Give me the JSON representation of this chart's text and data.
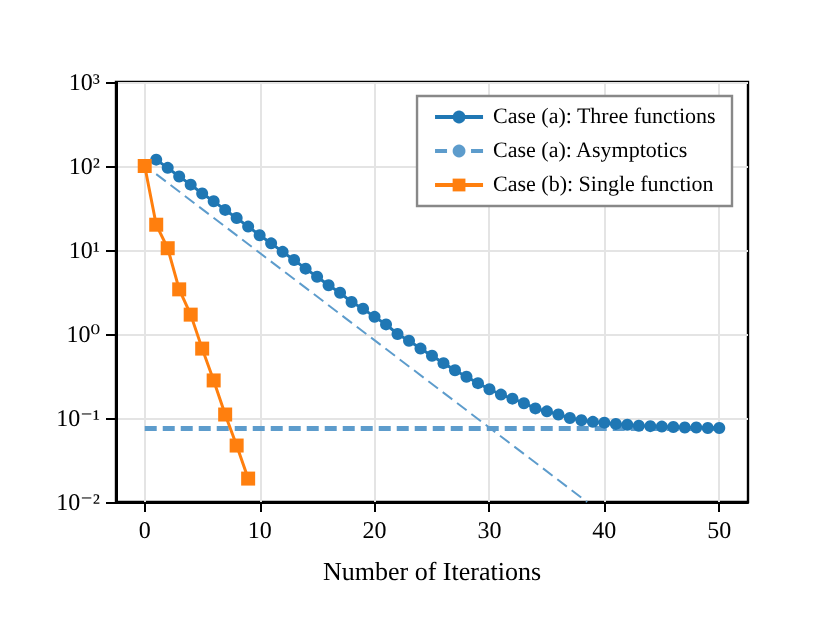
{
  "chart_data": {
    "type": "line",
    "xlabel": "Number of Iterations",
    "log": "y",
    "grid": true,
    "legend": "top right",
    "xlim": [
      -2.5,
      52.5
    ],
    "xticks": [
      0,
      10,
      20,
      30,
      40,
      50
    ],
    "ylim": [
      0.01,
      1000
    ],
    "yticks": [
      {
        "value": 0.01,
        "label": "10⁻²"
      },
      {
        "value": 0.1,
        "label": "10⁻¹"
      },
      {
        "value": 1,
        "label": "10⁰"
      },
      {
        "value": 10,
        "label": "10¹"
      },
      {
        "value": 100,
        "label": "10²"
      },
      {
        "value": 1000,
        "label": "10³"
      }
    ],
    "series": [
      {
        "name": "Case (a): Three functions",
        "color": "#1f77b4",
        "marker": "circle",
        "line_style": "solid",
        "x": [
          1,
          2,
          3,
          4,
          5,
          6,
          7,
          8,
          9,
          10,
          11,
          12,
          13,
          14,
          15,
          16,
          17,
          18,
          19,
          20,
          21,
          22,
          23,
          24,
          25,
          26,
          27,
          28,
          29,
          30,
          31,
          32,
          33,
          34,
          35,
          36,
          37,
          38,
          39,
          40,
          41,
          42,
          43,
          44,
          45,
          46,
          47,
          48,
          49,
          50
        ],
        "values": [
          119,
          95,
          75,
          60,
          47,
          38,
          30,
          24,
          19,
          15,
          12,
          9.5,
          7.6,
          6,
          4.8,
          3.8,
          3.1,
          2.4,
          2,
          1.6,
          1.3,
          1,
          0.83,
          0.67,
          0.55,
          0.45,
          0.37,
          0.31,
          0.26,
          0.22,
          0.19,
          0.17,
          0.15,
          0.13,
          0.12,
          0.11,
          0.1,
          0.094,
          0.09,
          0.088,
          0.085,
          0.083,
          0.081,
          0.08,
          0.079,
          0.078,
          0.077,
          0.077,
          0.076,
          0.076
        ]
      },
      {
        "name": "Case (a): Asymptotics",
        "color": "#5d9ccc",
        "marker": "none",
        "line_style": "dashed",
        "x": [
          0,
          50
        ],
        "values": [
          0.075,
          0.075
        ]
      },
      {
        "color": "#5d9ccc",
        "marker": "none",
        "line_style": "dashed",
        "x": [
          1,
          38.5
        ],
        "values": [
          80,
          0.01
        ]
      },
      {
        "name": "Case (b): Single function",
        "color": "#ff7f0e",
        "marker": "square",
        "line_style": "solid",
        "x": [
          0,
          1,
          2,
          3,
          4,
          5,
          6,
          7,
          8,
          9
        ],
        "values": [
          100,
          20,
          10.5,
          3.4,
          1.7,
          0.67,
          0.28,
          0.11,
          0.047,
          0.019
        ]
      }
    ]
  }
}
